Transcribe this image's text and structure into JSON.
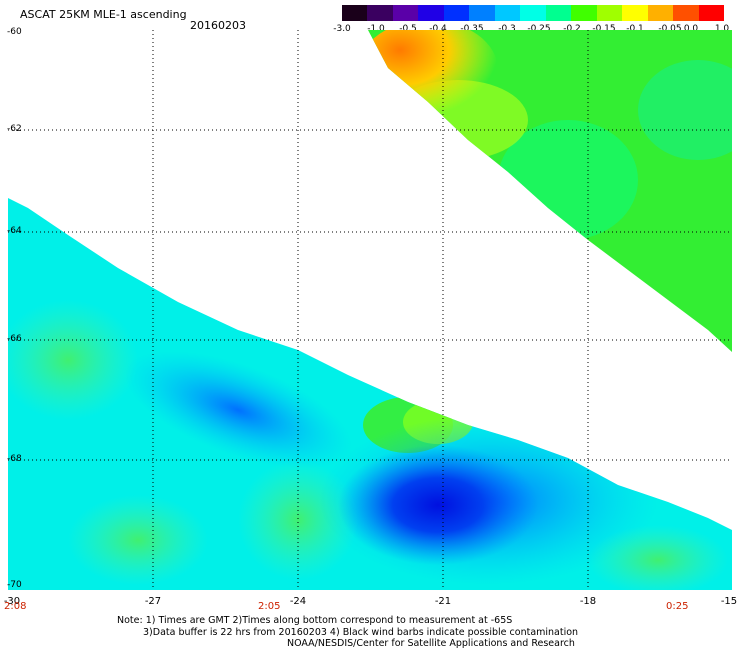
{
  "header": {
    "title": "ASCAT 25KM MLE-1 ascending",
    "date": "20160203"
  },
  "colorbar": {
    "tick_labels": [
      "-3.0",
      "-1.0",
      "-0.5",
      "-0.4",
      "-0.35",
      "-0.3",
      "-0.25",
      "-0.2",
      "-0.15",
      "-0.1",
      "-0.05",
      "0.0",
      "1.0"
    ],
    "colors": [
      "#1a001a",
      "#3a0060",
      "#5a00a8",
      "#2000e6",
      "#0030ff",
      "#0080ff",
      "#00c8ff",
      "#00ffe6",
      "#00ff90",
      "#40ff00",
      "#a0ff00",
      "#ffff00",
      "#ffb000",
      "#ff5000",
      "#ff0000"
    ]
  },
  "map": {
    "lat_labels": [
      "-60",
      "-62",
      "-64",
      "-66",
      "-68",
      "-70"
    ],
    "lon_labels": [
      "-30",
      "-27",
      "-24",
      "-21",
      "-18",
      "-15"
    ],
    "time_labels": [
      "2:08",
      "2:05",
      "0:25"
    ],
    "swath_colors": {
      "upper_orange": "#ff9900",
      "upper_yellow": "#ffee00",
      "upper_green": "#33ee33",
      "lower_cyan": "#00f0e8",
      "lower_green": "#40f080",
      "lower_blue": "#0080ff",
      "lower_deep_blue": "#0010e0"
    }
  },
  "footer": {
    "line1": "Note: 1) Times are GMT 2)Times along bottom correspond to measurement at -65S",
    "line2": "3)Data buffer is 22 hrs from 20160203 4) Black wind barbs indicate possible contamination",
    "line3": "NOAA/NESDIS/Center for Satellite Applications and Research"
  }
}
